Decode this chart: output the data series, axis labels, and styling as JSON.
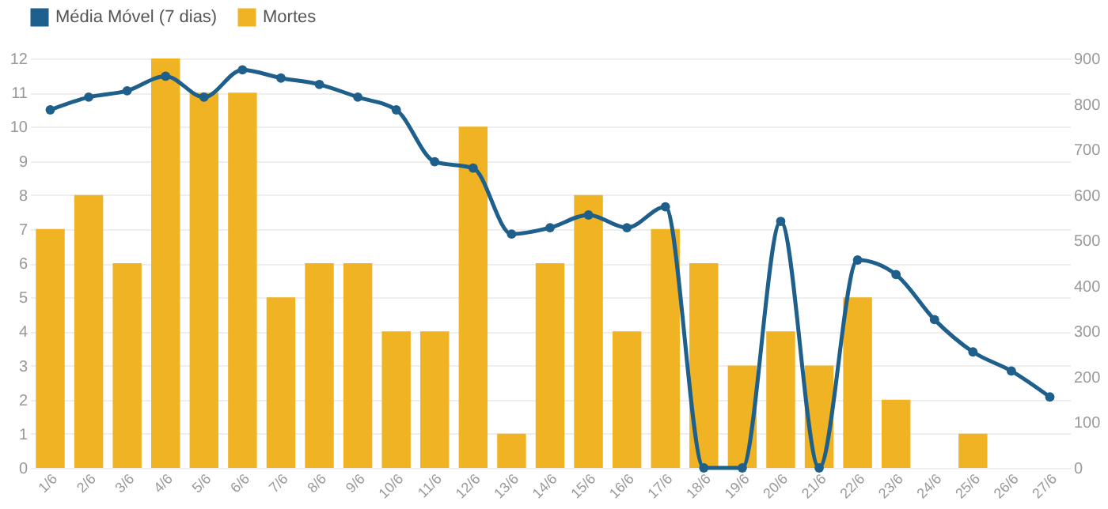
{
  "chart_data": {
    "type": "bar",
    "categories": [
      "1/6",
      "2/6",
      "3/6",
      "4/6",
      "5/6",
      "6/6",
      "7/6",
      "8/6",
      "9/6",
      "10/6",
      "11/6",
      "12/6",
      "13/6",
      "14/6",
      "15/6",
      "16/6",
      "17/6",
      "18/6",
      "19/6",
      "20/6",
      "21/6",
      "22/6",
      "23/6",
      "24/6",
      "25/6",
      "26/6",
      "27/6"
    ],
    "series": [
      {
        "name": "Média Móvel (7 dias)",
        "type": "line",
        "axis": "y2",
        "color": "#1f5f8b",
        "marker": "circle",
        "values": [
          787,
          815,
          829,
          861,
          815,
          875,
          857,
          843,
          815,
          787,
          673,
          659,
          514,
          528,
          556,
          528,
          574,
          0,
          0,
          542,
          0,
          457,
          425,
          326,
          255,
          213,
          156
        ]
      },
      {
        "name": "Mortes",
        "color": "#f0b323",
        "values": [
          7,
          8,
          6,
          12,
          11,
          11,
          5,
          6,
          6,
          4,
          4,
          10,
          1,
          6,
          8,
          4,
          7,
          6,
          3,
          4,
          3,
          5,
          2,
          0,
          1,
          0,
          0
        ]
      }
    ],
    "ylim": [
      0,
      12
    ],
    "yticks": [
      0,
      1,
      2,
      3,
      4,
      5,
      6,
      7,
      8,
      9,
      10,
      11,
      12
    ],
    "y2lim": [
      0,
      900
    ],
    "y2ticks": [
      0,
      100,
      200,
      300,
      400,
      500,
      600,
      700,
      800,
      900
    ],
    "grid": "y",
    "legend": "top left"
  }
}
